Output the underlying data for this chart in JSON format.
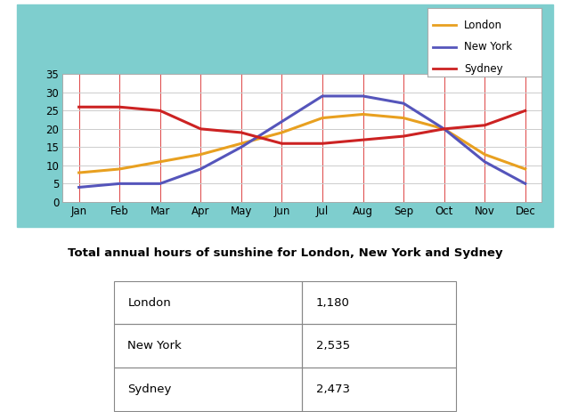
{
  "months": [
    "Jan",
    "Feb",
    "Mar",
    "Apr",
    "May",
    "Jun",
    "Jul",
    "Aug",
    "Sep",
    "Oct",
    "Nov",
    "Dec"
  ],
  "london": [
    8,
    9,
    11,
    13,
    16,
    19,
    23,
    24,
    23,
    20,
    13,
    9
  ],
  "new_york": [
    4,
    5,
    5,
    9,
    15,
    22,
    29,
    29,
    27,
    20,
    11,
    5
  ],
  "sydney": [
    26,
    26,
    25,
    20,
    19,
    16,
    16,
    17,
    18,
    20,
    21,
    25
  ],
  "london_color": "#e8a020",
  "new_york_color": "#5555bb",
  "sydney_color": "#cc2222",
  "teal_color": "#7ecece",
  "plot_bg": "#ffffff",
  "grid_h_color": "#cccccc",
  "grid_v_color": "#dd4444",
  "ylim": [
    0,
    35
  ],
  "yticks": [
    0,
    5,
    10,
    15,
    20,
    25,
    30,
    35
  ],
  "legend_labels": [
    "London",
    "New York",
    "Sydney"
  ],
  "table_title": "Total annual hours of sunshine for London, New York and Sydney",
  "table_data": [
    [
      "London",
      "1,180"
    ],
    [
      "New York",
      "2,535"
    ],
    [
      "Sydney",
      "2,473"
    ]
  ],
  "line_width": 2.2
}
